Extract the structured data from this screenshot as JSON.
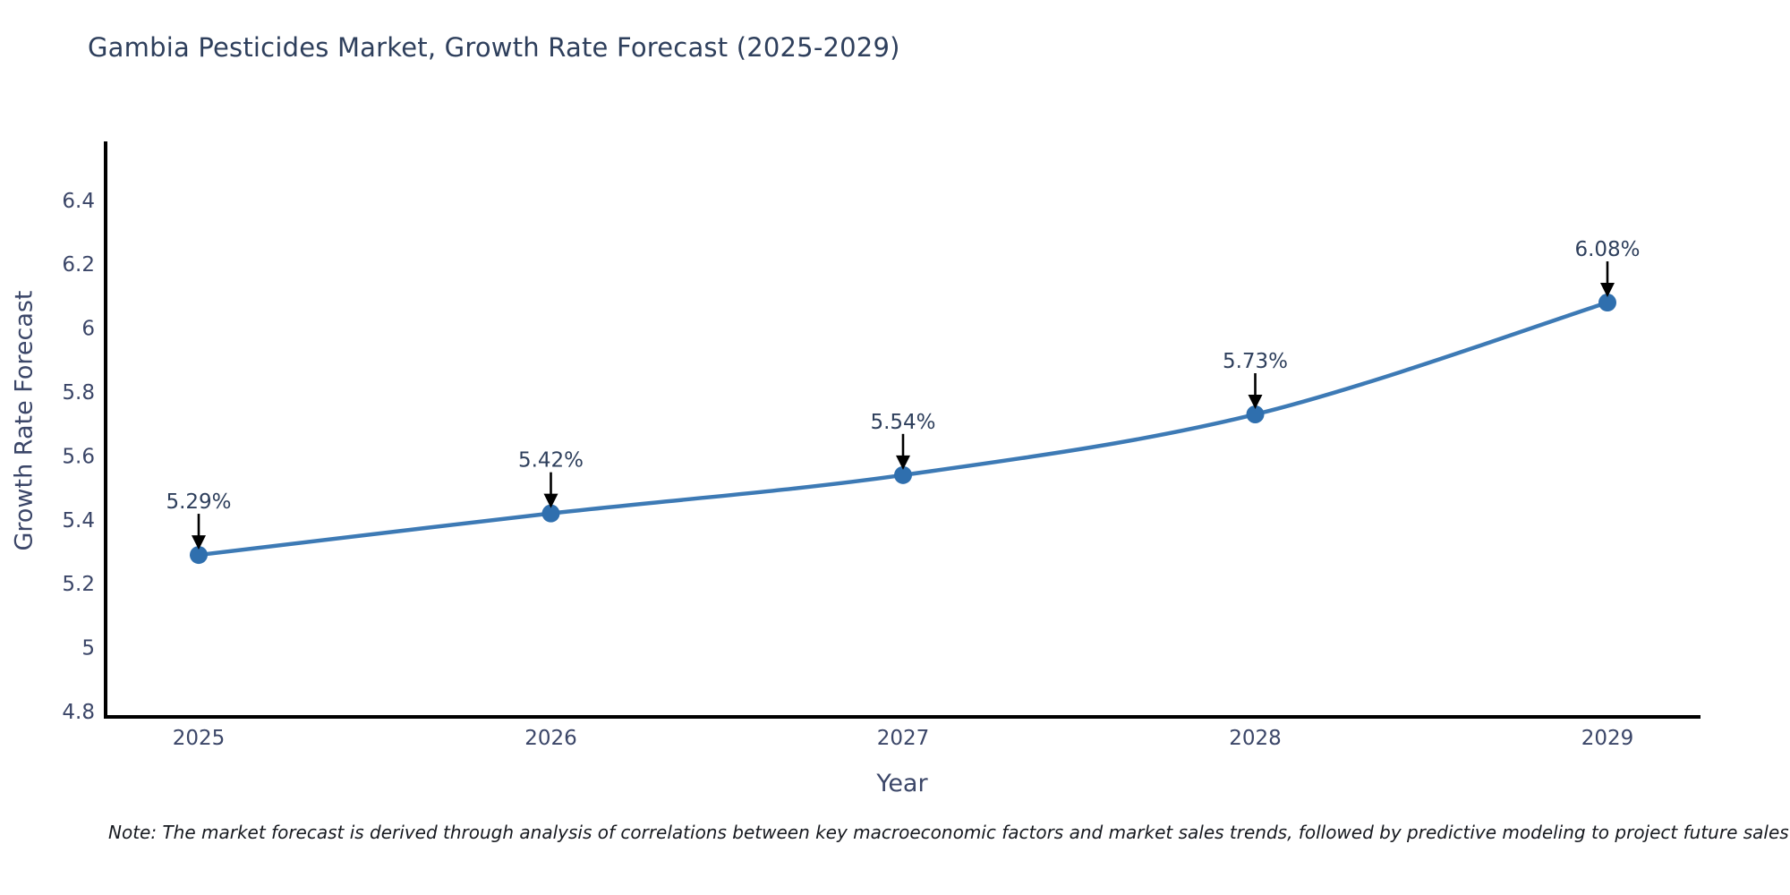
{
  "chart_data": {
    "type": "line",
    "title": "Gambia Pesticides Market, Growth Rate Forecast (2025-2029)",
    "xlabel": "Year",
    "ylabel": "Growth Rate Forecast",
    "categories": [
      "2025",
      "2026",
      "2027",
      "2028",
      "2029"
    ],
    "series": [
      {
        "name": "Growth Rate Forecast",
        "values": [
          5.29,
          5.42,
          5.54,
          5.73,
          6.08
        ],
        "point_labels": [
          "5.29%",
          "5.42%",
          "5.54%",
          "5.73%",
          "6.08%"
        ]
      }
    ],
    "yticks": {
      "values": [
        4.8,
        5,
        5.2,
        5.4,
        5.6,
        5.8,
        6,
        6.2,
        6.4
      ],
      "labels": [
        "4.8",
        "5",
        "5.2",
        "5.4",
        "5.6",
        "5.8",
        "6",
        "6.2",
        "6.4"
      ]
    },
    "ylim": [
      4.8,
      6.6
    ],
    "grid": false,
    "legend": "none",
    "annotation_style": "black-arrow-down-to-point",
    "colors": {
      "line": "#3d7ab5",
      "marker": "#2f6fae",
      "axis": "#000000",
      "tick_text": "#3b4668",
      "title_text": "#2e3f5c",
      "label_text": "#2e3f5c",
      "note_text": "#16191f"
    },
    "note": "Note: The market forecast is derived through analysis of correlations between key macroeconomic factors and market sales trends, followed by predictive modeling to project future sales"
  }
}
